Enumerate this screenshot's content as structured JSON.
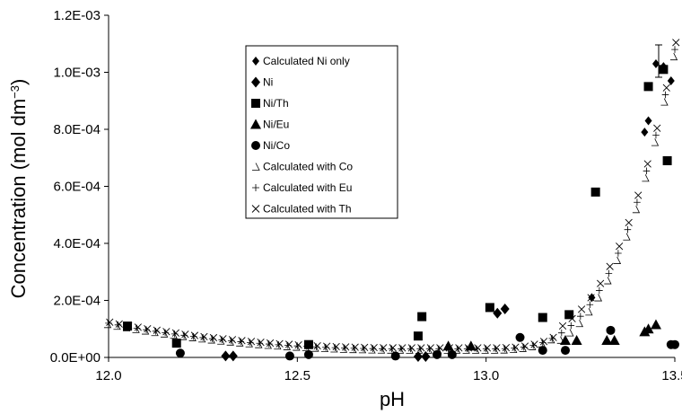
{
  "chart_data": {
    "type": "scatter",
    "title": "",
    "xlabel": "pH",
    "ylabel": "Concentration (mol dm",
    "ylabel_sup": "−3",
    "ylabel_close": ")",
    "xlim": [
      12.0,
      13.5
    ],
    "ylim": [
      0,
      0.0012
    ],
    "x_ticks": [
      12.0,
      12.5,
      13.0,
      13.5
    ],
    "x_tick_labels": [
      "12.0",
      "12.5",
      "13.0",
      "13.5"
    ],
    "y_ticks": [
      0,
      0.0002,
      0.0004,
      0.0006,
      0.0008,
      0.001,
      0.0012
    ],
    "y_tick_labels": [
      "0.0E+00",
      "2.0E-04",
      "4.0E-04",
      "6.0E-04",
      "8.0E-04",
      "1.0E-03",
      "1.2E-03"
    ],
    "grid": false,
    "legend_position": "top-center",
    "series": [
      {
        "name": "Calculated Ni only",
        "marker": "diamond-small",
        "points": [
          [
            13.28,
            0.00021
          ],
          [
            13.42,
            0.00079
          ],
          [
            13.43,
            0.00083
          ],
          [
            13.45,
            0.00103
          ],
          [
            13.47,
            0.00102
          ],
          [
            13.49,
            0.00097
          ]
        ]
      },
      {
        "name": "Ni",
        "marker": "diamond",
        "points": [
          [
            12.31,
            5e-06
          ],
          [
            12.33,
            5e-06
          ],
          [
            12.82,
            3e-06
          ],
          [
            12.84,
            3e-06
          ],
          [
            13.03,
            0.000155
          ],
          [
            13.05,
            0.00017
          ]
        ]
      },
      {
        "name": "Ni/Th",
        "marker": "square",
        "points": [
          [
            12.05,
            0.00011
          ],
          [
            12.18,
            5e-05
          ],
          [
            12.53,
            4.5e-05
          ],
          [
            12.82,
            7.5e-05
          ],
          [
            12.83,
            0.000143
          ],
          [
            13.01,
            0.000175
          ],
          [
            13.15,
            0.00014
          ],
          [
            13.22,
            0.00015
          ],
          [
            13.29,
            0.00058
          ],
          [
            13.43,
            0.00095
          ],
          [
            13.47,
            0.00101
          ],
          [
            13.48,
            0.00069
          ]
        ]
      },
      {
        "name": "Ni/Eu",
        "marker": "triangle",
        "points": [
          [
            12.9,
            4e-05
          ],
          [
            12.96,
            4e-05
          ],
          [
            13.21,
            6e-05
          ],
          [
            13.24,
            6e-05
          ],
          [
            13.32,
            6e-05
          ],
          [
            13.34,
            6e-05
          ],
          [
            13.42,
            9e-05
          ],
          [
            13.43,
            0.0001
          ],
          [
            13.45,
            0.000115
          ]
        ]
      },
      {
        "name": "Ni/Co",
        "marker": "circle",
        "points": [
          [
            12.19,
            1.5e-05
          ],
          [
            12.48,
            5e-06
          ],
          [
            12.53,
            1e-05
          ],
          [
            12.76,
            5e-06
          ],
          [
            12.87,
            1e-05
          ],
          [
            12.91,
            1e-05
          ],
          [
            13.09,
            7e-05
          ],
          [
            13.15,
            2.5e-05
          ],
          [
            13.21,
            2.5e-05
          ],
          [
            13.33,
            9.5e-05
          ],
          [
            13.49,
            4.5e-05
          ],
          [
            13.5,
            4.5e-05
          ]
        ]
      },
      {
        "name": "Calculated with Co",
        "marker": "open-triangle",
        "points": []
      },
      {
        "name": "Calculated with Eu",
        "marker": "plus",
        "points": []
      },
      {
        "name": "Calculated with Th",
        "marker": "cross",
        "points": []
      }
    ],
    "curve": {
      "x_start": 12.0,
      "x_end": 13.5,
      "step": 0.025,
      "min_x": 12.8,
      "min_y": 3e-05,
      "start_y": 0.00012,
      "end_y": 0.00108,
      "rise_start": 13.0,
      "rise_power": 3.2
    }
  }
}
